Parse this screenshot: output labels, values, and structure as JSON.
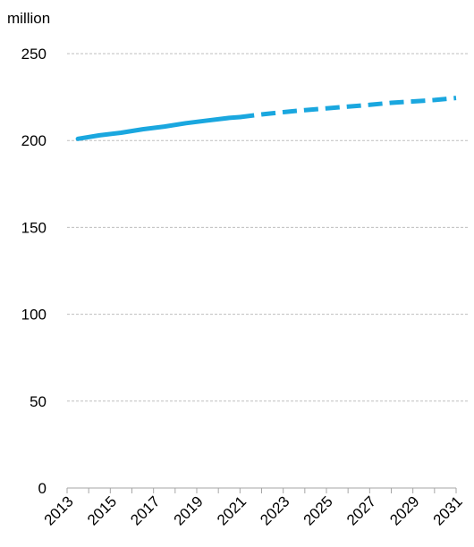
{
  "chart_data": {
    "type": "line",
    "unit_label": "million",
    "ylim": [
      0,
      250
    ],
    "y_ticks": [
      0,
      50,
      100,
      150,
      200,
      250
    ],
    "x_range": [
      2013,
      2031
    ],
    "x_tick_labels": [
      "2013",
      "2015",
      "2017",
      "2019",
      "2021",
      "2023",
      "2025",
      "2027",
      "2029",
      "2031"
    ],
    "grid": true,
    "line_color": "#1AA7DF",
    "grid_color": "#BFBFBF",
    "series": [
      {
        "style": "solid",
        "x": [
          2013.5,
          2014.5,
          2015.5,
          2016.5,
          2017.5,
          2018.5,
          2019.5,
          2020.5,
          2021
        ],
        "values": [
          201,
          203,
          204.5,
          206.5,
          208,
          210,
          211.5,
          213,
          213.5
        ]
      },
      {
        "style": "dashed",
        "x": [
          2021,
          2022,
          2023,
          2024,
          2025,
          2026,
          2027,
          2028,
          2029,
          2030,
          2031
        ],
        "values": [
          213.5,
          215,
          216.3,
          217.5,
          218.5,
          219.5,
          220.5,
          221.7,
          222.5,
          223.3,
          224.5
        ]
      }
    ]
  }
}
